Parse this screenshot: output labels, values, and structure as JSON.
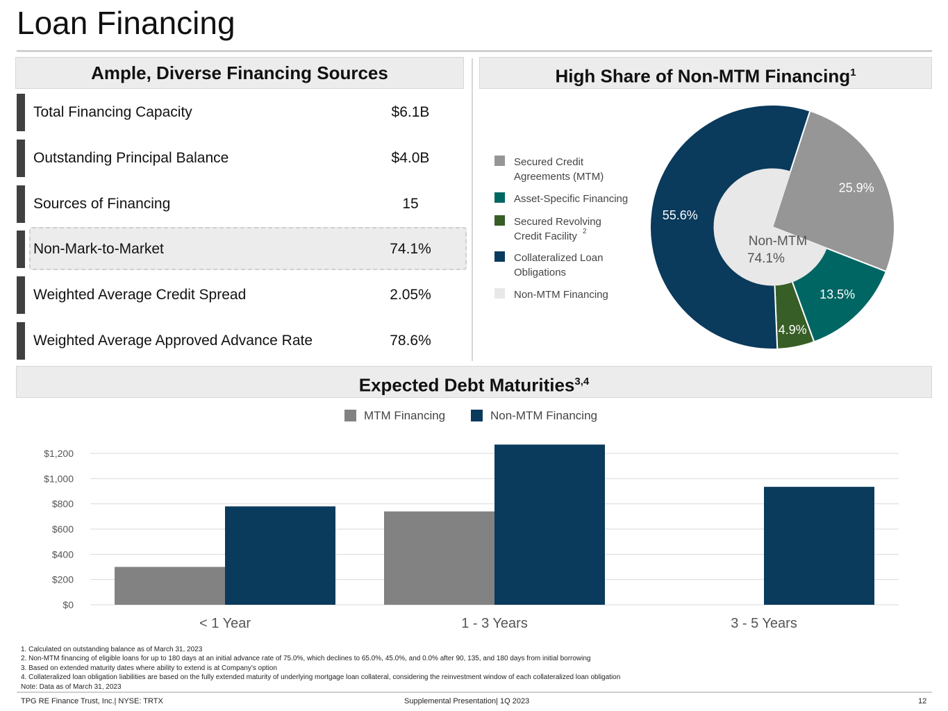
{
  "page": {
    "title": "Loan Financing"
  },
  "left_panel": {
    "heading": "Ample, Diverse Financing Sources",
    "stats": [
      {
        "label": "Total Financing Capacity",
        "value": "$6.1B"
      },
      {
        "label": "Outstanding Principal Balance",
        "value": "$4.0B"
      },
      {
        "label": "Sources of Financing",
        "value": "15"
      },
      {
        "label": "Non-Mark-to-Market",
        "value": "74.1%"
      },
      {
        "label": "Weighted Average Credit Spread",
        "value": "2.05%"
      },
      {
        "label": "Weighted Average Approved Advance Rate",
        "value": "78.6%"
      }
    ]
  },
  "right_panel": {
    "heading": "High Share of Non-MTM Financing",
    "heading_sup": "1",
    "legend": [
      {
        "label": "Secured Credit\nAgreements (MTM)",
        "color": "#969696"
      },
      {
        "label": "Asset-Specific Financing",
        "color": "#006663"
      },
      {
        "label": "Secured Revolving\nCredit Facility",
        "color": "#375e26",
        "sup": "2"
      },
      {
        "label": "Collateralized Loan\nObligations",
        "color": "#0a3a5c"
      },
      {
        "label": "Non-MTM Financing",
        "color": "#e8e8e8"
      }
    ]
  },
  "bottom_panel": {
    "heading": "Expected Debt Maturities",
    "heading_sup": "3,4"
  },
  "chart_data": [
    {
      "type": "pie",
      "variant": "donut",
      "slices": [
        {
          "label": "Secured Credit Agreements (MTM)",
          "value": 25.9,
          "display": "25.9%",
          "color": "#969696"
        },
        {
          "label": "Asset-Specific Financing",
          "value": 13.5,
          "display": "13.5%",
          "color": "#006663"
        },
        {
          "label": "Secured Revolving Credit Facility",
          "value": 4.9,
          "display": "4.9%",
          "color": "#375e26"
        },
        {
          "label": "Collateralized Loan Obligations",
          "value": 55.6,
          "display": "55.6%",
          "color": "#0a3a5c"
        }
      ],
      "inner": {
        "label": "Non-MTM",
        "value": "74.1%",
        "share": 74.1,
        "color": "#e8e8e8"
      },
      "legend_position": "left"
    },
    {
      "type": "bar",
      "categories": [
        "< 1 Year",
        "1 - 3 Years",
        "3 - 5 Years"
      ],
      "series": [
        {
          "name": "MTM Financing",
          "values": [
            300,
            740,
            0
          ],
          "color": "#828282"
        },
        {
          "name": "Non-MTM Financing",
          "values": [
            780,
            1270,
            935
          ],
          "color": "#0a3a5c"
        }
      ],
      "ylim": [
        0,
        1200
      ],
      "yticks": [
        0,
        200,
        400,
        600,
        800,
        1000,
        1200
      ],
      "ytick_labels": [
        "$0",
        "$200",
        "$400",
        "$600",
        "$800",
        "$1,000",
        "$1,200"
      ],
      "grid": true,
      "legend_position": "top-center"
    }
  ],
  "footnotes": [
    "1. Calculated on outstanding balance as of March 31, 2023",
    "2. Non-MTM financing of eligible loans for up to 180 days at an initial advance rate of 75.0%, which declines to 65.0%, 45.0%, and 0.0% after 90, 135, and 180 days from initial borrowing",
    "3. Based on extended maturity dates where ability to extend is at Company’s option",
    "4. Collateralized loan obligation liabilities are based on the fully extended maturity of underlying mortgage loan collateral, considering the reinvestment window of each collateralized loan obligation",
    "Note: Data as of March 31, 2023"
  ],
  "footer": {
    "left": "TPG RE Finance Trust, Inc.| NYSE: TRTX",
    "center": "Supplemental Presentation| 1Q 2023",
    "page_number": "12"
  }
}
